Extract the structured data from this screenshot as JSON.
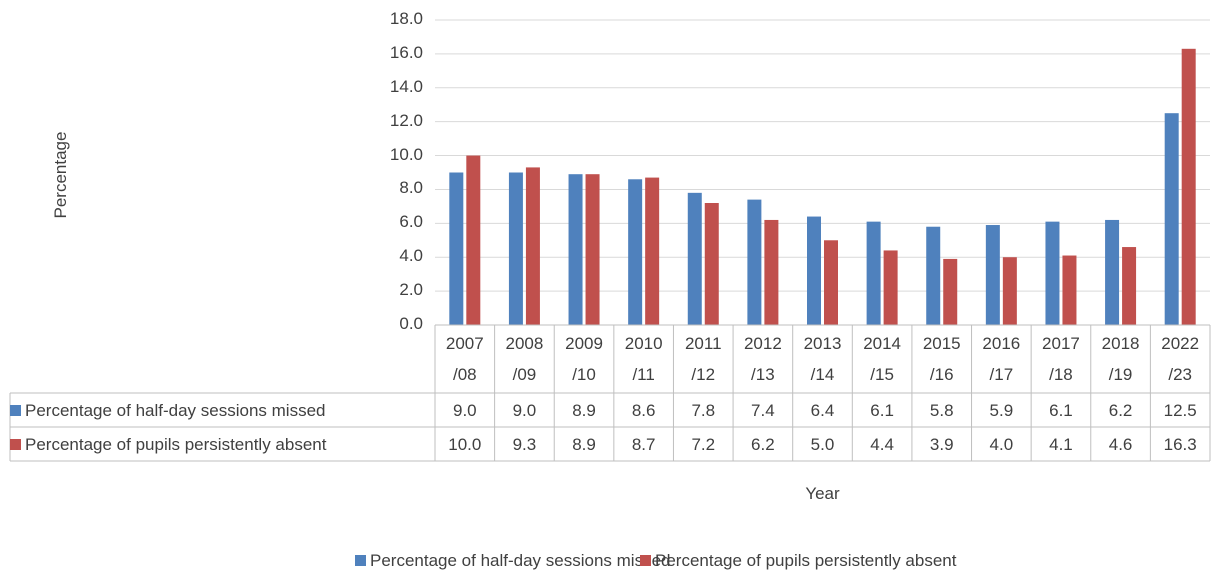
{
  "chart_data": {
    "type": "bar",
    "categories": [
      "2007\n/08",
      "2008\n/09",
      "2009\n/10",
      "2010\n/11",
      "2011\n/12",
      "2012\n/13",
      "2013\n/14",
      "2014\n/15",
      "2015\n/16",
      "2016\n/17",
      "2017\n/18",
      "2018\n/19",
      "2022\n/23"
    ],
    "series": [
      {
        "name": "Percentage of half-day sessions missed",
        "color": "#4f81bd",
        "values": [
          9.0,
          9.0,
          8.9,
          8.6,
          7.8,
          7.4,
          6.4,
          6.1,
          5.8,
          5.9,
          6.1,
          6.2,
          12.5
        ],
        "value_labels": [
          "9.0",
          "9.0",
          "8.9",
          "8.6",
          "7.8",
          "7.4",
          "6.4",
          "6.1",
          "5.8",
          "5.9",
          "6.1",
          "6.2",
          "12.5"
        ]
      },
      {
        "name": "Percentage of pupils persistently absent",
        "color": "#c0504d",
        "values": [
          10.0,
          9.3,
          8.9,
          8.7,
          7.2,
          6.2,
          5.0,
          4.4,
          3.9,
          4.0,
          4.1,
          4.6,
          16.3
        ],
        "value_labels": [
          "10.0",
          "9.3",
          "8.9",
          "8.7",
          "7.2",
          "6.2",
          "5.0",
          "4.4",
          "3.9",
          "4.0",
          "4.1",
          "4.6",
          "16.3"
        ]
      }
    ],
    "x_label": "Year",
    "y_label": "Percentage",
    "ylim": [
      0,
      18
    ],
    "yticks": [
      {
        "value": 0,
        "label": "0.0"
      },
      {
        "value": 2,
        "label": "2.0"
      },
      {
        "value": 4,
        "label": "4.0"
      },
      {
        "value": 6,
        "label": "6.0"
      },
      {
        "value": 8,
        "label": "8.0"
      },
      {
        "value": 10,
        "label": "10.0"
      },
      {
        "value": 12,
        "label": "12.0"
      },
      {
        "value": 14,
        "label": "14.0"
      },
      {
        "value": 16,
        "label": "16.0"
      },
      {
        "value": 18,
        "label": "18.0"
      }
    ],
    "grid": true,
    "legend": "bottom"
  }
}
